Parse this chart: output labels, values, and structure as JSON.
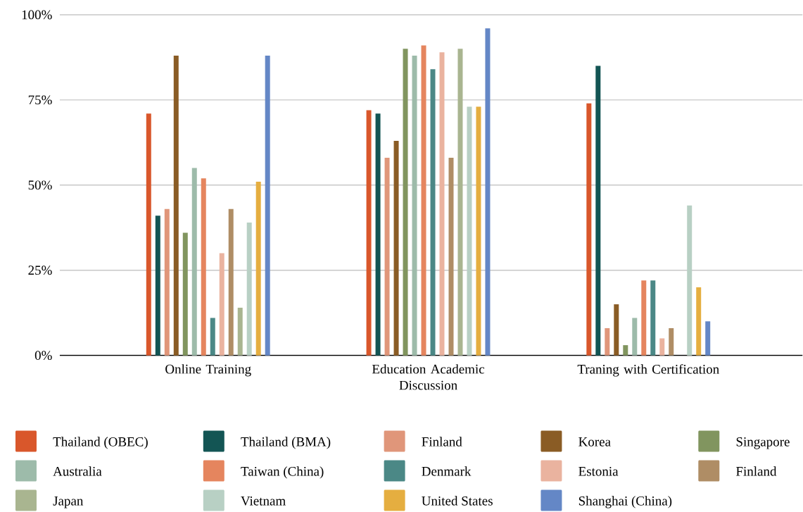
{
  "chart_data": {
    "type": "bar",
    "categories": [
      "Online Training",
      "Education Academic Discussion",
      "Traning with Certification"
    ],
    "series": [
      {
        "name": "Thailand (OBEC)",
        "color": "#d9572b",
        "values": [
          71,
          72,
          74
        ]
      },
      {
        "name": "Thailand (BMA)",
        "color": "#135554",
        "values": [
          41,
          71,
          85
        ]
      },
      {
        "name": "Finland",
        "color": "#e0967a",
        "values": [
          43,
          58,
          8
        ]
      },
      {
        "name": "Korea",
        "color": "#8a5c25",
        "values": [
          88,
          63,
          15
        ]
      },
      {
        "name": "Singapore",
        "color": "#81955f",
        "values": [
          36,
          90,
          3
        ]
      },
      {
        "name": "Australia",
        "color": "#9dbbaa",
        "values": [
          55,
          88,
          11
        ]
      },
      {
        "name": "Taiwan (China)",
        "color": "#e5855e",
        "values": [
          52,
          91,
          22
        ]
      },
      {
        "name": "Denmark",
        "color": "#4b8886",
        "values": [
          11,
          84,
          22
        ]
      },
      {
        "name": "Estonia",
        "color": "#eab39f",
        "values": [
          30,
          89,
          5
        ]
      },
      {
        "name": "Finland",
        "color": "#af8d65",
        "values": [
          43,
          58,
          8
        ]
      },
      {
        "name": "Japan",
        "color": "#a9b590",
        "values": [
          14,
          90,
          null
        ]
      },
      {
        "name": "Vietnam",
        "color": "#b8d0c4",
        "values": [
          39,
          73,
          44
        ]
      },
      {
        "name": "United States",
        "color": "#e5ae40",
        "values": [
          51,
          73,
          20
        ]
      },
      {
        "name": "Shanghai (China)",
        "color": "#6487c6",
        "values": [
          88,
          96,
          10
        ]
      }
    ],
    "ylim": [
      0,
      100
    ],
    "yticks": [
      {
        "value": 0,
        "label": "0%"
      },
      {
        "value": 25,
        "label": "25%"
      },
      {
        "value": 50,
        "label": "50%"
      },
      {
        "value": 75,
        "label": "75%"
      },
      {
        "value": 100,
        "label": "100%"
      }
    ],
    "grid": "y",
    "legend": "bottom"
  }
}
